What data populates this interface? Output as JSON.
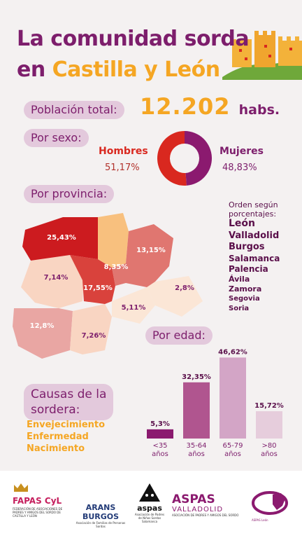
{
  "title": {
    "line1": "La comunidad sorda",
    "line2_prefix": "en ",
    "line2_highlight": "Castilla y León"
  },
  "population": {
    "label": "Población total:",
    "value": "12.202",
    "unit": "habs."
  },
  "sex": {
    "label": "Por sexo:",
    "men_label": "Hombres",
    "men_pct": "51,17%",
    "women_label": "Mujeres",
    "women_pct": "48,83%"
  },
  "province": {
    "label": "Por provincia:",
    "order_title": "Orden según porcentajes:",
    "order": [
      "León",
      "Valladolid",
      "Burgos",
      "Salamanca",
      "Palencia",
      "Ávila",
      "Zamora",
      "Segovia",
      "Soria"
    ]
  },
  "age": {
    "label": "Por edad:"
  },
  "causes": {
    "label_line1": "Causas de la",
    "label_line2": "sordera:",
    "items": [
      "Envejecimiento",
      "Enfermedad",
      "Nacimiento"
    ]
  },
  "chart_data": [
    {
      "type": "pie",
      "categories": [
        "Hombres",
        "Mujeres"
      ],
      "values": [
        51.17,
        48.83
      ],
      "colors": [
        "#d9281f",
        "#8b1a6f"
      ]
    },
    {
      "type": "heatmap",
      "categories": [
        "León",
        "Valladolid",
        "Burgos",
        "Salamanca",
        "Palencia",
        "Ávila",
        "Zamora",
        "Segovia",
        "Soria"
      ],
      "values": [
        25.43,
        17.55,
        13.15,
        12.8,
        8.35,
        7.26,
        7.14,
        5.11,
        2.8
      ],
      "labels": [
        "25,43%",
        "17,55%",
        "13,15%",
        "12,8%",
        "8,35%",
        "7,26%",
        "7,14%",
        "5,11%",
        "2,8%"
      ]
    },
    {
      "type": "bar",
      "categories": [
        "<35 años",
        "35-64 años",
        "65-79 años",
        ">80 años"
      ],
      "values": [
        5.3,
        32.35,
        46.62,
        15.72
      ],
      "labels": [
        "5,3%",
        "32,35%",
        "46,62%",
        "15,72%"
      ],
      "colors": [
        "#8b1a6f",
        "#b0558f",
        "#d3a5c6",
        "#e6cddc"
      ],
      "ylim": [
        0,
        50
      ]
    }
  ],
  "footer": {
    "logos": [
      {
        "name": "FAPAS CyL",
        "caption": "FEDERACIÓN DE ASOCIACIONES DE PADRES Y AMIGOS DEL SORDO DE CASTILLA Y LEÓN"
      },
      {
        "name": "ARANS BURGOS",
        "caption": "Asociación de Familias de Personas Sordas"
      },
      {
        "name": "aspas",
        "caption": "Asociación de Padres de Niños Sordos Salamanca"
      },
      {
        "name": "ASPAS",
        "sub": "VALLADOLID",
        "caption": "ASOCIACIÓN DE PADRES Y AMIGOS DEL SORDO"
      },
      {
        "name": "ASPAS León"
      }
    ]
  }
}
